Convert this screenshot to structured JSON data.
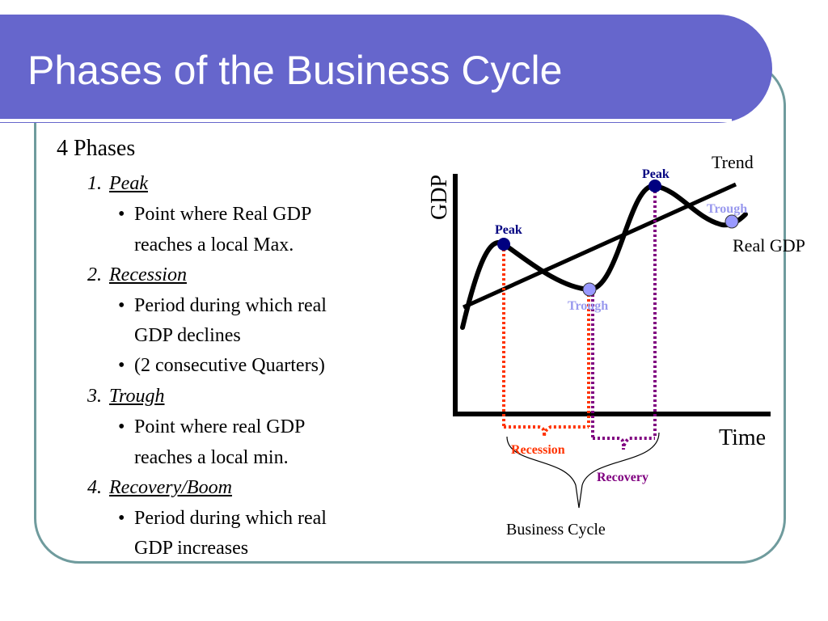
{
  "slide": {
    "title": "Phases of the Business Cycle"
  },
  "content": {
    "heading": "4 Phases",
    "phases": [
      {
        "number": "1.",
        "name": "Peak",
        "bullets": [
          [
            "Point where Real GDP",
            "reaches a local Max."
          ]
        ]
      },
      {
        "number": "2.",
        "name": "Recession",
        "bullets": [
          [
            "Period during which real",
            "GDP declines"
          ],
          [
            "(2 consecutive Quarters)"
          ]
        ]
      },
      {
        "number": "3.",
        "name": "Trough",
        "bullets": [
          [
            "Point where real GDP",
            "reaches a local min."
          ]
        ]
      },
      {
        "number": "4.",
        "name": "Recovery/Boom",
        "bullets": [
          [
            "Period during which real",
            "GDP increases"
          ]
        ]
      }
    ],
    "bullet_symbol": "•"
  },
  "diagram": {
    "y_axis_label": "GDP",
    "x_axis_label": "Time",
    "trend_label": "Trend",
    "real_gdp_label": "Real GDP",
    "peak_label_1": "Peak",
    "peak_label_2": "Peak",
    "trough_label_1": "Trough",
    "trough_label_2": "Trough",
    "recession_label": "Recession",
    "recovery_label": "Recovery",
    "business_cycle_label": "Business Cycle",
    "colors": {
      "peak_point": "#000080",
      "trough_point": "#9999ff",
      "peak_text": "#000080",
      "trough_text": "#9999ee",
      "recession": "#ff3300",
      "recovery": "#800080",
      "title_bar": "#6666cc",
      "frame": "#6f9b9d"
    }
  }
}
